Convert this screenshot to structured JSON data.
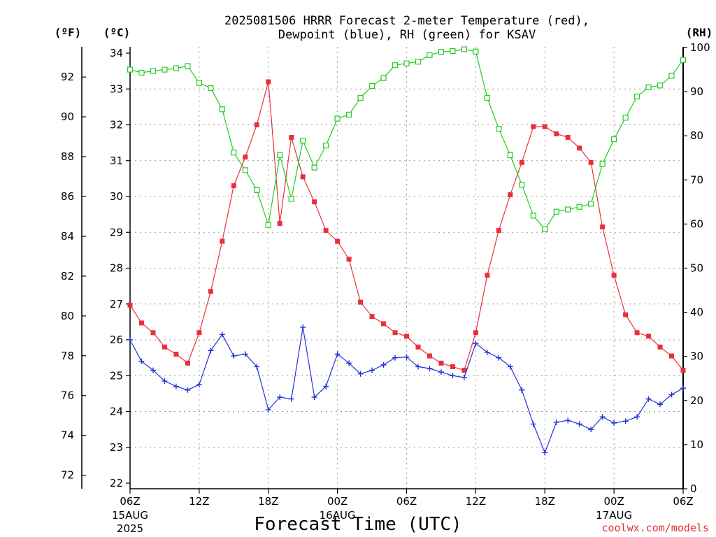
{
  "title": {
    "line1": "2025081506 HRRR Forecast 2-meter Temperature (red),",
    "line2": "Dewpoint (blue), RH (green) for KSAV"
  },
  "units": {
    "fahrenheit": "(ºF)",
    "celsius": "(ºC)",
    "rh": "(RH)"
  },
  "xlabel": "Forecast Time (UTC)",
  "credit": "coolwx.com/models",
  "colors": {
    "temperature": "#e8303a",
    "dewpoint": "#2233d8",
    "rh": "#22cc22"
  },
  "chart_data": {
    "type": "line",
    "title": "2025081506 HRRR Forecast 2-meter Temperature (red), Dewpoint (blue), RH (green) for KSAV",
    "xlabel": "Forecast Time (UTC)",
    "x_hours": [
      0,
      1,
      2,
      3,
      4,
      5,
      6,
      7,
      8,
      9,
      10,
      11,
      12,
      13,
      14,
      15,
      16,
      17,
      18,
      19,
      20,
      21,
      22,
      23,
      24,
      25,
      26,
      27,
      28,
      29,
      30,
      31,
      32,
      33,
      34,
      35,
      36,
      37,
      38,
      39,
      40,
      41,
      42,
      43,
      44,
      45,
      46,
      47,
      48
    ],
    "xlim": [
      0,
      48
    ],
    "x_ticks": [
      {
        "hour": 0,
        "label": "06Z",
        "sub": [
          "15AUG",
          "2025"
        ]
      },
      {
        "hour": 6,
        "label": "12Z",
        "sub": []
      },
      {
        "hour": 12,
        "label": "18Z",
        "sub": []
      },
      {
        "hour": 18,
        "label": "00Z",
        "sub": [
          "16AUG"
        ]
      },
      {
        "hour": 24,
        "label": "06Z",
        "sub": []
      },
      {
        "hour": 30,
        "label": "12Z",
        "sub": []
      },
      {
        "hour": 36,
        "label": "18Z",
        "sub": []
      },
      {
        "hour": 42,
        "label": "00Z",
        "sub": [
          "17AUG"
        ]
      },
      {
        "hour": 48,
        "label": "06Z",
        "sub": []
      }
    ],
    "y_celsius": {
      "ylim": [
        22,
        34
      ],
      "ticks": [
        "22",
        "23",
        "24",
        "25",
        "26",
        "27",
        "28",
        "29",
        "30",
        "31",
        "32",
        "33",
        "34"
      ]
    },
    "y_fahrenheit": {
      "ticks": [
        "72",
        "74",
        "76",
        "78",
        "80",
        "82",
        "84",
        "86",
        "88",
        "90",
        "92"
      ]
    },
    "y_rh": {
      "ylim": [
        0,
        100
      ],
      "ticks": [
        "0",
        "10",
        "20",
        "30",
        "40",
        "50",
        "60",
        "70",
        "80",
        "90",
        "100"
      ]
    },
    "series": [
      {
        "name": "Temperature",
        "axis": "celsius",
        "marker": "square-filled",
        "values": [
          26.97,
          26.47,
          26.2,
          25.8,
          25.6,
          25.35,
          26.2,
          27.35,
          28.75,
          30.3,
          31.1,
          32.0,
          33.2,
          29.25,
          31.65,
          30.55,
          29.85,
          29.05,
          28.75,
          28.25,
          27.05,
          26.65,
          26.45,
          26.2,
          26.1,
          25.8,
          25.55,
          25.35,
          25.25,
          25.15,
          26.2,
          27.8,
          29.05,
          30.05,
          30.95,
          31.95,
          31.95,
          31.75,
          31.65,
          31.35,
          30.95,
          29.15,
          27.8,
          26.7,
          26.2,
          26.1,
          25.8,
          25.55,
          25.15
        ]
      },
      {
        "name": "Dewpoint",
        "axis": "celsius",
        "marker": "plus",
        "values": [
          26.0,
          25.4,
          25.15,
          24.85,
          24.7,
          24.6,
          24.75,
          25.7,
          26.15,
          25.55,
          25.6,
          25.25,
          24.05,
          24.4,
          24.35,
          26.35,
          24.4,
          24.7,
          25.6,
          25.35,
          25.05,
          25.15,
          25.3,
          25.5,
          25.52,
          25.25,
          25.2,
          25.1,
          25.0,
          24.95,
          25.9,
          25.65,
          25.5,
          25.25,
          24.6,
          23.65,
          22.85,
          23.7,
          23.75,
          23.65,
          23.5,
          23.85,
          23.68,
          23.73,
          23.85,
          24.35,
          24.2,
          24.47,
          24.65
        ]
      },
      {
        "name": "RH",
        "axis": "rh",
        "marker": "square-open",
        "values": [
          95.0,
          94.3,
          94.7,
          95.0,
          95.3,
          95.8,
          92.0,
          90.8,
          86.0,
          76.2,
          72.2,
          67.7,
          59.8,
          75.6,
          65.7,
          78.9,
          72.8,
          77.8,
          83.9,
          84.8,
          88.6,
          91.3,
          93.1,
          96.0,
          96.4,
          96.8,
          98.3,
          99.0,
          99.2,
          99.6,
          99.1,
          88.6,
          81.6,
          75.6,
          68.9,
          61.9,
          58.8,
          62.8,
          63.3,
          63.9,
          64.6,
          73.6,
          79.2,
          84.1,
          88.9,
          91.0,
          91.4,
          93.6,
          97.2
        ]
      }
    ]
  }
}
